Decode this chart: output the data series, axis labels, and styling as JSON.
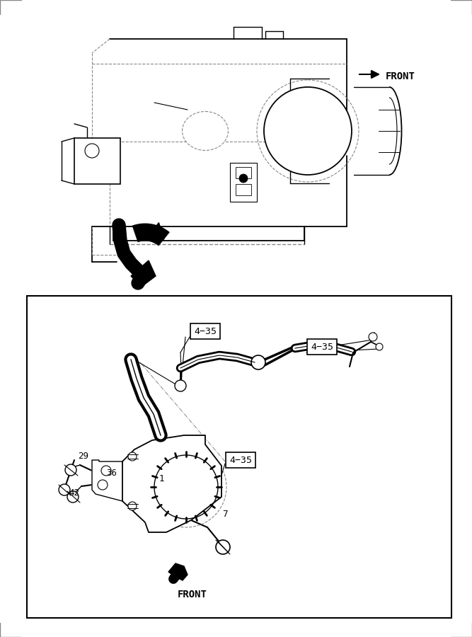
{
  "bg_color": "#ffffff",
  "line_color": "#000000",
  "gray_color": "#888888",
  "front_label": "FRONT",
  "fig_width": 6.67,
  "fig_height": 9.0
}
